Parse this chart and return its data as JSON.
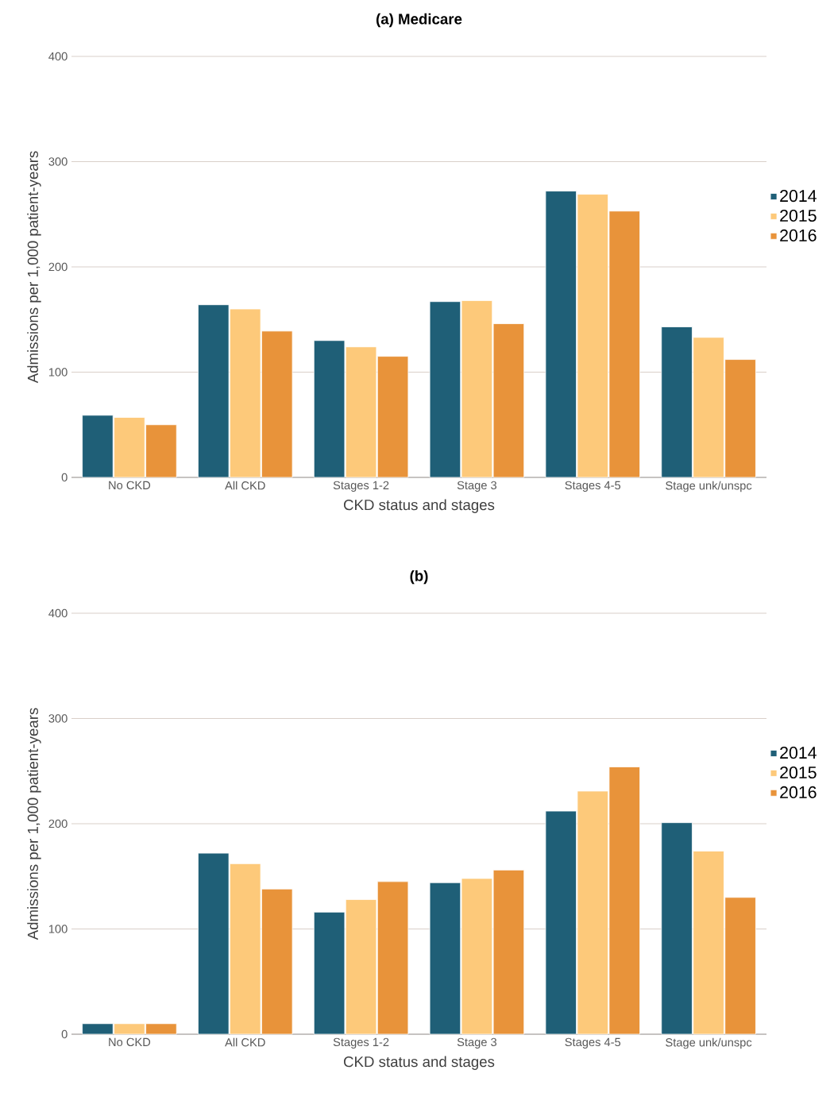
{
  "chart_data": [
    {
      "type": "bar",
      "title": "**(a) Medicare**",
      "xlabel": "CKD status and stages",
      "ylabel": "Admissions per 1,000 patient-years",
      "categories": [
        "No CKD",
        "All CKD",
        "Stages 1-2",
        "Stage 3",
        "Stages 4-5",
        "Stage unk/unspc"
      ],
      "series": [
        {
          "name": "2014",
          "color": "#1f5f77",
          "values": [
            59,
            164,
            130,
            167,
            272,
            143
          ]
        },
        {
          "name": "2015",
          "color": "#fdc97a",
          "values": [
            57,
            160,
            124,
            168,
            269,
            133
          ]
        },
        {
          "name": "2016",
          "color": "#e8933a",
          "values": [
            50,
            139,
            115,
            146,
            253,
            112
          ]
        }
      ],
      "ylim": [
        0,
        400
      ],
      "yticks": [
        0,
        100,
        200,
        300,
        400
      ],
      "grid": "y",
      "legend": "right"
    },
    {
      "type": "bar",
      "title": "**(b)**",
      "xlabel": "CKD status and stages",
      "ylabel": "Admissions per 1,000 patient-years",
      "categories": [
        "No CKD",
        "All CKD",
        "Stages 1-2",
        "Stage 3",
        "Stages 4-5",
        "Stage unk/unspc"
      ],
      "series": [
        {
          "name": "2014",
          "color": "#1f5f77",
          "values": [
            10,
            172,
            116,
            144,
            212,
            201
          ]
        },
        {
          "name": "2015",
          "color": "#fdc97a",
          "values": [
            10,
            162,
            128,
            148,
            231,
            174
          ]
        },
        {
          "name": "2016",
          "color": "#e8933a",
          "values": [
            10,
            138,
            145,
            156,
            254,
            130
          ]
        }
      ],
      "ylim": [
        0,
        400
      ],
      "yticks": [
        0,
        100,
        200,
        300,
        400
      ],
      "grid": "y",
      "legend": "right"
    }
  ]
}
